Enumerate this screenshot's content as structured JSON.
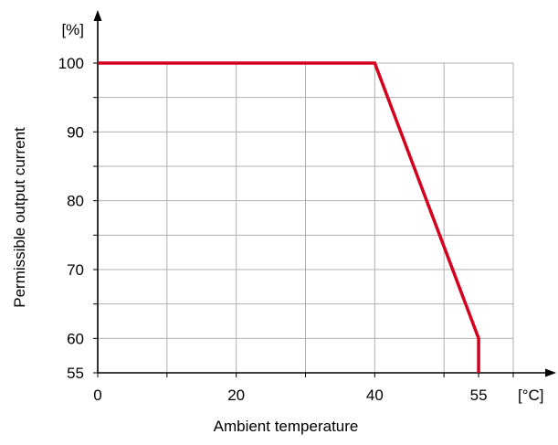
{
  "chart_data": {
    "type": "line",
    "title": "",
    "xlabel": "Ambient temperature",
    "ylabel": "Permissible output current",
    "x_unit": "[°C]",
    "y_unit": "[%]",
    "xlim": [
      0,
      60
    ],
    "ylim": [
      55,
      100
    ],
    "x_ticks": [
      0,
      20,
      40,
      55
    ],
    "x_tick_labels": [
      "0",
      "20",
      "40",
      "55"
    ],
    "y_ticks": [
      55,
      60,
      70,
      80,
      90,
      100
    ],
    "y_tick_labels": [
      "55",
      "60",
      "70",
      "80",
      "90",
      "100"
    ],
    "grid": true,
    "series": [
      {
        "color": "#d4001e",
        "x": [
          0,
          40,
          55,
          55
        ],
        "y": [
          100,
          100,
          60,
          55
        ]
      }
    ]
  },
  "colors": {
    "line": "#d4001e",
    "grid": "#b0b0b0",
    "axis": "#000000"
  }
}
